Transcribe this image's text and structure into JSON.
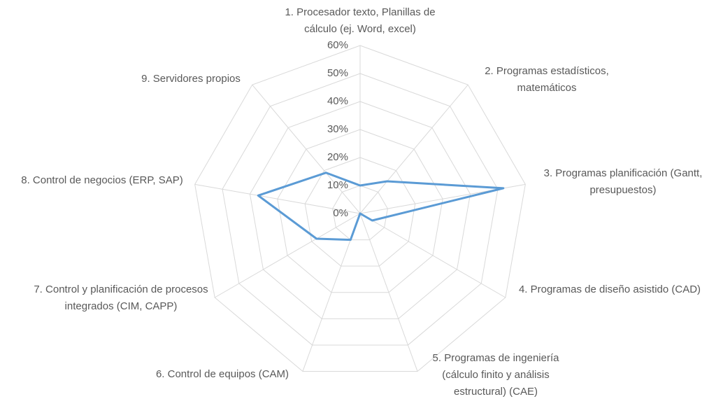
{
  "chart_data": {
    "type": "radar",
    "categories": [
      "1. Procesador texto, Planillas de cálculo (ej. Word, excel)",
      "2. Programas estadísticos, matemáticos",
      "3. Programas planificación (Gantt, presupuestos)",
      "4. Programas de diseño asistido (CAD)",
      "5. Programas de ingeniería (cálculo finito y análisis estructural) (CAE)",
      "6. Control de equipos (CAM)",
      "7. Control y planificación de procesos integrados (CIM, CAPP)",
      "8. Control de negocios (ERP, SAP)",
      "9. Servidores propios"
    ],
    "values": [
      10,
      15,
      52,
      5,
      0,
      10,
      18,
      37,
      19
    ],
    "color": "#5b9bd5",
    "rlim": [
      0,
      60
    ],
    "rticks": [
      {
        "value": 0,
        "label": "0%"
      },
      {
        "value": 10,
        "label": "10%"
      },
      {
        "value": 20,
        "label": "20%"
      },
      {
        "value": 30,
        "label": "30%"
      },
      {
        "value": 40,
        "label": "40%"
      },
      {
        "value": 50,
        "label": "50%"
      },
      {
        "value": 60,
        "label": "60%"
      }
    ],
    "grid": true
  }
}
